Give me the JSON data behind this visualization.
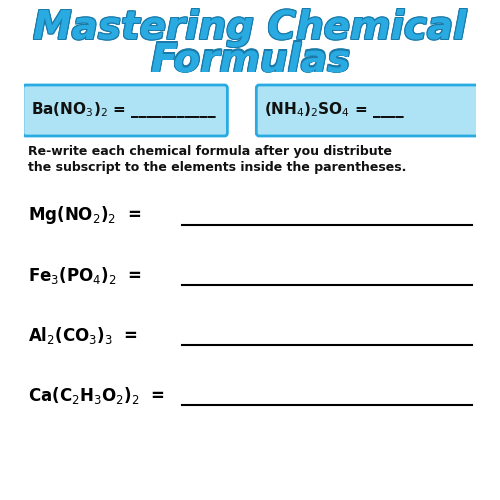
{
  "title_line1": "Mastering Chemical",
  "title_line2": "Formulas",
  "title_color": "#29ABE2",
  "title_stroke_color": "#1a7aaa",
  "bg_color": "#ffffff",
  "box1_text_formula": "Ba(NO$_3$)$_2$ = ",
  "box2_text_formula": "(NH$_4$)$_2$SO$_4$ = ",
  "box_bg_color": "#87CEEB",
  "box_border_color": "#29ABE2",
  "instruction_line1": "Re-write each chemical formula after you distribute",
  "instruction_line2": "the subscript to the elements inside the parentheses.",
  "formulas": [
    "Mg(NO$_2$)$_2$  =",
    "Fe$_3$(PO$_4$)$_2$  =",
    "Al$_2$(CO$_3$)$_3$  =",
    "Ca(C$_2$H$_3$O$_2$)$_2$  ="
  ],
  "formula_color": "#000000",
  "line_color": "#000000"
}
